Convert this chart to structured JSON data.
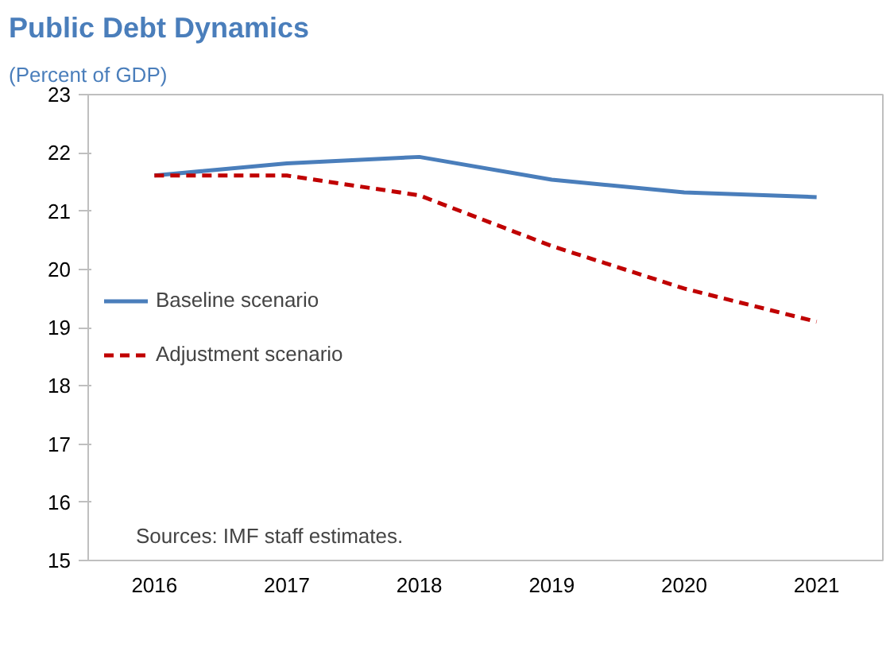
{
  "chart_data": {
    "type": "line",
    "title": "Public Debt Dynamics",
    "subtitle": "(Percent of GDP)",
    "categories": [
      "2016",
      "2017",
      "2018",
      "2019",
      "2020",
      "2021"
    ],
    "series": [
      {
        "name": "Baseline scenario",
        "color": "#4a7ebb",
        "line_style": "solid",
        "values": [
          21.61,
          21.82,
          21.93,
          21.54,
          21.32,
          21.24
        ]
      },
      {
        "name": "Adjustment scenario",
        "color": "#c00000",
        "line_style": "dashed",
        "values": [
          21.61,
          21.61,
          21.27,
          20.4,
          19.67,
          19.1
        ]
      }
    ],
    "ylim": [
      15,
      23
    ],
    "yticks": [
      15,
      16,
      17,
      18,
      19,
      20,
      21,
      22,
      23
    ],
    "grid": false,
    "legend": "left",
    "annotations": [
      "Sources: IMF staff estimates."
    ]
  }
}
